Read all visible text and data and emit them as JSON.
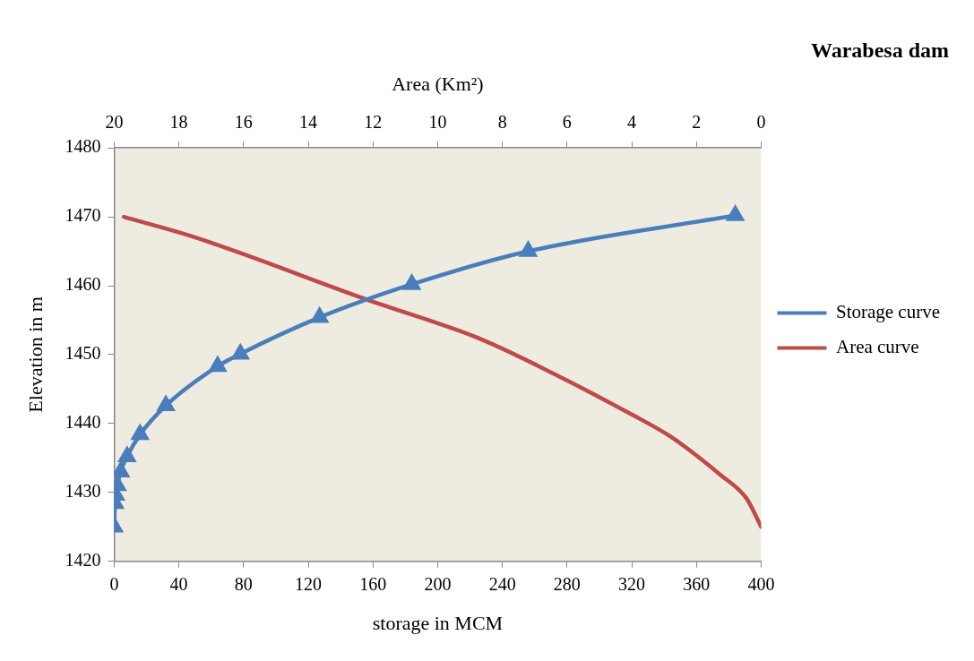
{
  "chart_data": {
    "type": "line",
    "title": "Warabesa dam",
    "xlabel": "storage in MCM",
    "x2label": "Area (Km²)",
    "ylabel": "Elevation in m",
    "xlim": [
      0,
      400
    ],
    "xticks": [
      0,
      40,
      80,
      120,
      160,
      200,
      240,
      280,
      320,
      360,
      400
    ],
    "x2lim": [
      20,
      0
    ],
    "x2ticks": [
      20,
      18,
      16,
      14,
      12,
      10,
      8,
      6,
      4,
      2,
      0
    ],
    "ylim": [
      1420,
      1480
    ],
    "yticks": [
      1420,
      1430,
      1440,
      1450,
      1460,
      1470,
      1480
    ],
    "grid": false,
    "legend": "right",
    "series": [
      {
        "name": "Storage curve",
        "color": "#4a7ebb",
        "marker": "triangle",
        "x": [
          0,
          0.5,
          1,
          2,
          4,
          8,
          16,
          32,
          64,
          78,
          127,
          184,
          256,
          384
        ],
        "values": [
          1425,
          1428.4,
          1429.6,
          1431,
          1433,
          1435.2,
          1438.4,
          1442.6,
          1448.3,
          1450.1,
          1455.4,
          1460.2,
          1465,
          1470.2
        ]
      },
      {
        "name": "Area curve",
        "color": "#be4b48",
        "marker": "none",
        "axis": "x2",
        "x": [
          19.7,
          17.55,
          12.2,
          8.75,
          6.4,
          4,
          2.8,
          1.25,
          0.45,
          0
        ],
        "values": [
          1470,
          1467.1,
          1458,
          1452.4,
          1447.2,
          1441.3,
          1438.1,
          1432.5,
          1429.1,
          1425
        ]
      }
    ]
  }
}
